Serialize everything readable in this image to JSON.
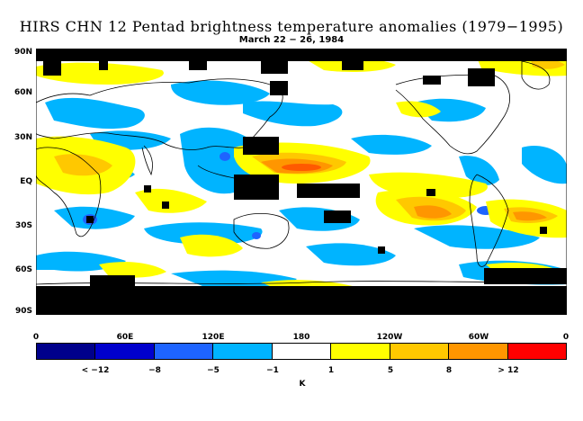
{
  "title": "HIRS CHN 12 Pentad brightness temperature anomalies (1979−1995)",
  "subtitle": "March 22 − 26, 1984",
  "y_ticks": [
    "90N",
    "60N",
    "30N",
    "EQ",
    "30S",
    "60S",
    "90S"
  ],
  "x_ticks": [
    "0",
    "60E",
    "120E",
    "180",
    "120W",
    "60W",
    "0"
  ],
  "colorbar": {
    "colors": [
      "#00008b",
      "#0000cd",
      "#1e64ff",
      "#00b4ff",
      "#ffffff",
      "#ffff00",
      "#ffc800",
      "#ff9600",
      "#ff5a00",
      "#ff0000"
    ],
    "labels": [
      "< −12",
      "−8",
      "−5",
      "−1",
      "1",
      "5",
      "8",
      "> 12"
    ],
    "unit": "K"
  }
}
